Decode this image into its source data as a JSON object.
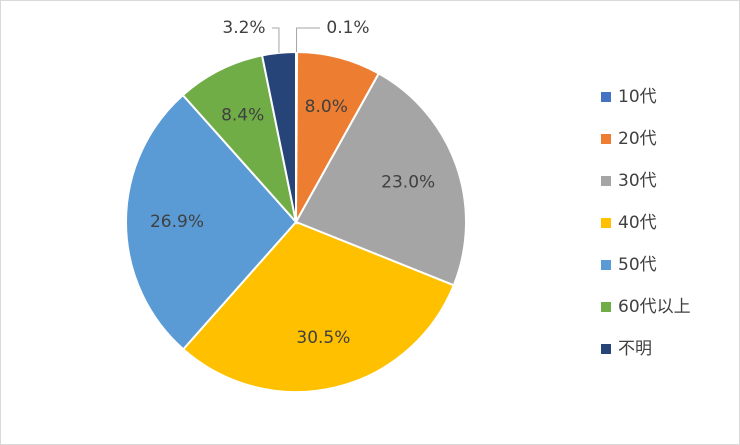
{
  "chart_data": {
    "type": "pie",
    "categories": [
      "10代",
      "20代",
      "30代",
      "40代",
      "50代",
      "60代以上",
      "不明"
    ],
    "values": [
      0.1,
      8.0,
      23.0,
      30.5,
      26.9,
      8.4,
      3.2
    ],
    "value_labels": [
      "0.1%",
      "8.0%",
      "23.0%",
      "30.5%",
      "26.9%",
      "8.4%",
      "3.2%"
    ],
    "colors": [
      "#4472c4",
      "#ed7d31",
      "#a5a5a5",
      "#ffc000",
      "#5b9bd5",
      "#70ad47",
      "#264478"
    ],
    "legend": "right"
  }
}
